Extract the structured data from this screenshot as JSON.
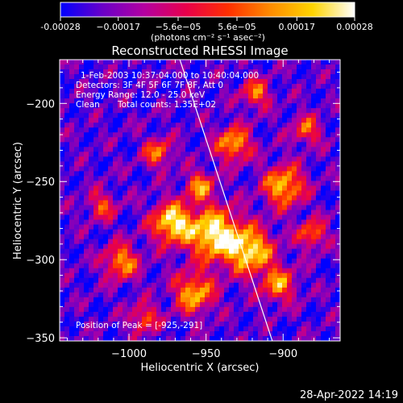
{
  "chart_data": {
    "type": "heatmap",
    "title": "Reconstructed RHESSI Image",
    "xlabel": "Heliocentric X (arcsec)",
    "ylabel": "Heliocentric Y (arcsec)",
    "xlim": [
      -1045,
      -863
    ],
    "ylim": [
      -352,
      -172
    ],
    "x_ticks": [
      -1000,
      -950,
      -900
    ],
    "x_tick_labels": [
      "−1000",
      "−950",
      "−900"
    ],
    "y_ticks": [
      -200,
      -250,
      -300,
      -350
    ],
    "y_tick_labels": [
      "−200",
      "−250",
      "−300",
      "−350"
    ],
    "colorbar": {
      "range": [
        -0.00028,
        0.00028
      ],
      "tick_values": [
        -0.00028,
        -0.00017,
        -5.6e-05,
        5.6e-05,
        0.00017,
        0.00028
      ],
      "tick_labels": [
        "-0.00028",
        "−0.00017",
        "−5.6e−05",
        "5.6e−05",
        "0.00017",
        "0.00028"
      ],
      "unit_label": "(photons cm⁻² s⁻¹ asec⁻²)",
      "colormap": [
        "#0000ff",
        "#6a00c8",
        "#b400a0",
        "#e8004a",
        "#ff3000",
        "#ff8c00",
        "#ffd400",
        "#ffffff"
      ]
    },
    "limb_line": [
      [
        -967,
        -172
      ],
      [
        -907,
        -352
      ]
    ],
    "peak": [
      -925,
      -291
    ],
    "annotations": {
      "time": "1-Feb-2003 10:37:04.000 to 10:40:04.000",
      "detectors": "Detectors: 3F 4F 5F 6F 7F 8F, Att 0",
      "energy": "Energy Range: 12.0 - 25.0 keV",
      "method": "Clean",
      "counts": "Total counts: 1.35E+02",
      "peak_text": "Position of Peak = [-925,-291]"
    },
    "grid": false
  },
  "footer": {
    "timestamp": "28-Apr-2022 14:19"
  },
  "colors": {
    "background": "#000000",
    "text": "#ffffff",
    "limb": "#ffffff"
  }
}
